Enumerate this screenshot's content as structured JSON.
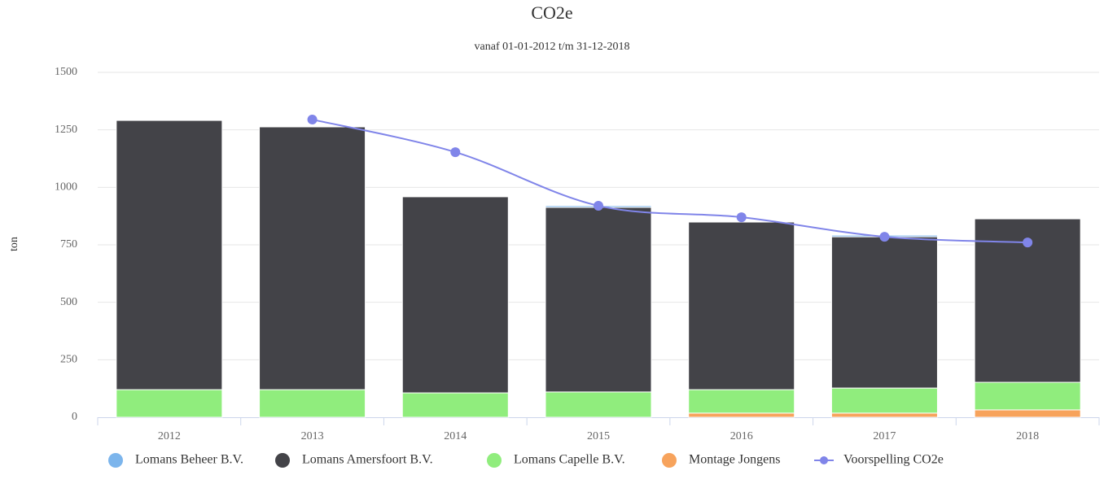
{
  "chart_data": {
    "type": "stacked-bar-line",
    "title": "CO2e",
    "subtitle": "vanaf 01-01-2012 t/m 31-12-2018",
    "y_label": "ton",
    "categories": [
      "2012",
      "2013",
      "2014",
      "2015",
      "2016",
      "2017",
      "2018"
    ],
    "series": [
      {
        "name": "Montage Jongens",
        "color": "#f7a35c",
        "values": [
          0,
          0,
          0,
          0,
          18,
          18,
          32
        ]
      },
      {
        "name": "Lomans Capelle B.V.",
        "color": "#90ed7d",
        "values": [
          120,
          120,
          106,
          110,
          102,
          109,
          120
        ]
      },
      {
        "name": "Lomans Amersfoort B.V.",
        "color": "#434348",
        "values": [
          1171,
          1143,
          853,
          803,
          729,
          658,
          711
        ]
      },
      {
        "name": "Lomans Beheer B.V.",
        "color": "#7cb5ec",
        "values": [
          0,
          0,
          0,
          7,
          0,
          7,
          0
        ]
      },
      {
        "name": "Voorspelling CO2e",
        "color": "#8085e9",
        "type": "line",
        "values": [
          null,
          1295,
          1153,
          920,
          870,
          785,
          760
        ]
      }
    ],
    "legend_order": [
      3,
      2,
      1,
      0,
      4
    ],
    "ylim": [
      0,
      1500
    ],
    "yticks": [
      0,
      250,
      500,
      750,
      1000,
      1250,
      1500
    ],
    "grid": true
  }
}
